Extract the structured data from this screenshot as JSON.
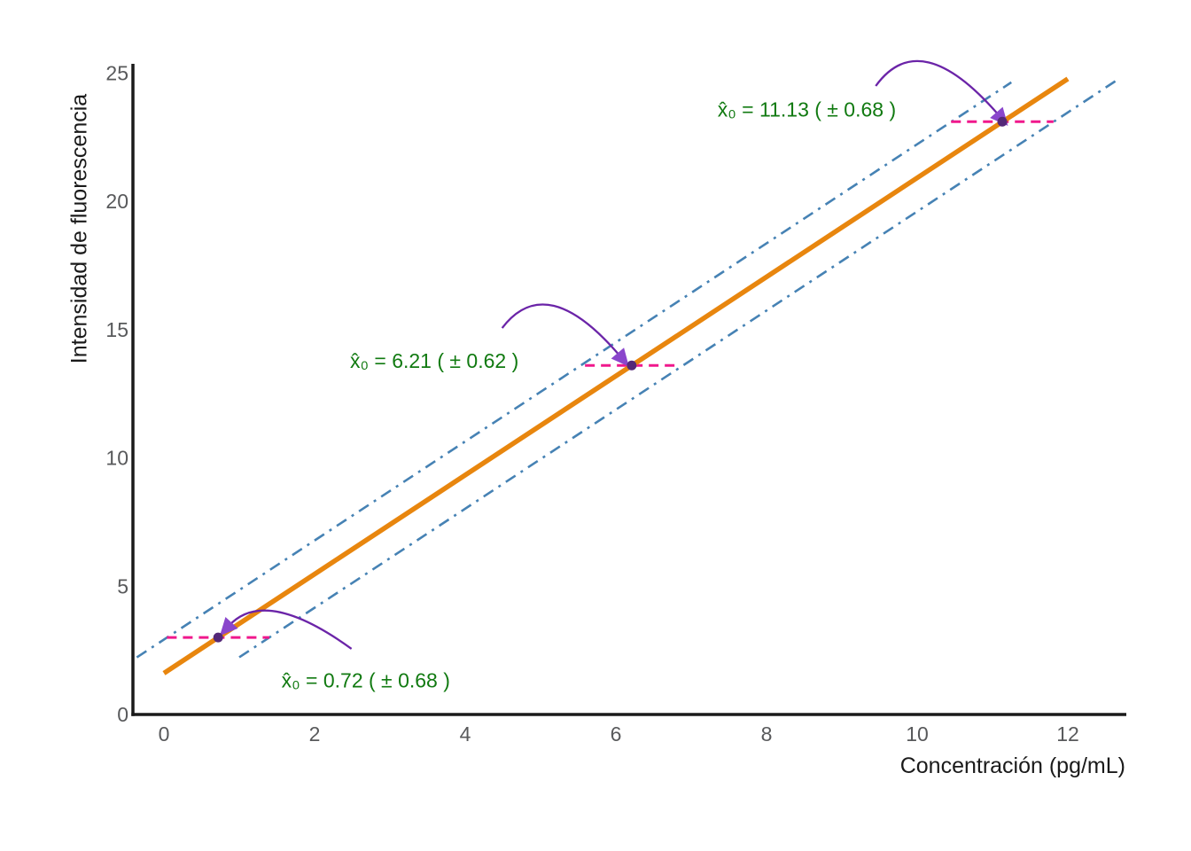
{
  "chart_data": {
    "type": "line",
    "title": "",
    "xlabel": "Concentración (pg/mL)",
    "ylabel": "Intensidad de fluorescencia",
    "xlim": [
      0,
      12.8
    ],
    "ylim": [
      0,
      25.3
    ],
    "x_ticks": [
      0,
      2,
      4,
      6,
      8,
      10,
      12
    ],
    "y_ticks": [
      0,
      5,
      10,
      15,
      20,
      25
    ],
    "grid": false,
    "legend": false,
    "calibration_line": {
      "name": "calibration-line",
      "slope": 1.93,
      "intercept": 1.61,
      "x_range": [
        0,
        12
      ]
    },
    "confidence_bands": [
      {
        "name": "upper-confidence-band",
        "slope": 1.93,
        "intercept": 2.92,
        "x_range": [
          -0.36,
          11.25
        ]
      },
      {
        "name": "lower-confidence-band",
        "slope": 1.93,
        "intercept": 0.3,
        "x_range": [
          1.0,
          12.67
        ]
      }
    ],
    "inverse_predictions": [
      {
        "x0": 0.72,
        "uncertainty": 0.68,
        "y0": 3.0,
        "label": "x̂₀ = 0.72  ( ± 0.68 )",
        "interval_x": [
          0.04,
          1.4
        ],
        "label_anchor": [
          1.56,
          1.05
        ],
        "arrow": {
          "tail": [
            2.49,
            2.56
          ],
          "ctrl": [
            1.34,
            5.0
          ],
          "tip": [
            0.86,
            3.45
          ]
        }
      },
      {
        "x0": 6.21,
        "uncertainty": 0.62,
        "y0": 13.6,
        "label": "x̂₀ = 6.21  ( ± 0.62 )",
        "interval_x": [
          5.59,
          6.83
        ],
        "label_anchor": [
          2.47,
          13.5
        ],
        "arrow": {
          "tail": [
            4.49,
            15.06
          ],
          "ctrl": [
            5.08,
            17.34
          ],
          "tip": [
            6.06,
            13.95
          ]
        }
      },
      {
        "x0": 11.13,
        "uncertainty": 0.68,
        "y0": 23.1,
        "label": "x̂₀ = 11.13  ( ± 0.68 )",
        "interval_x": [
          10.45,
          11.81
        ],
        "label_anchor": [
          7.35,
          23.3
        ],
        "arrow": {
          "tail": [
            9.45,
            24.49
          ],
          "ctrl": [
            10.04,
            26.9
          ],
          "tip": [
            11.09,
            23.33
          ]
        }
      }
    ],
    "colors": {
      "line": "#e8860e",
      "band": "#4682b4",
      "interval": "#f0188c",
      "arrow": "#6b24a8",
      "arrowhead": "#8a46cc",
      "point": "#542878",
      "annotation_text": "#117a11",
      "axis": "#1a1a1a",
      "tick_text": "#58595b"
    }
  }
}
